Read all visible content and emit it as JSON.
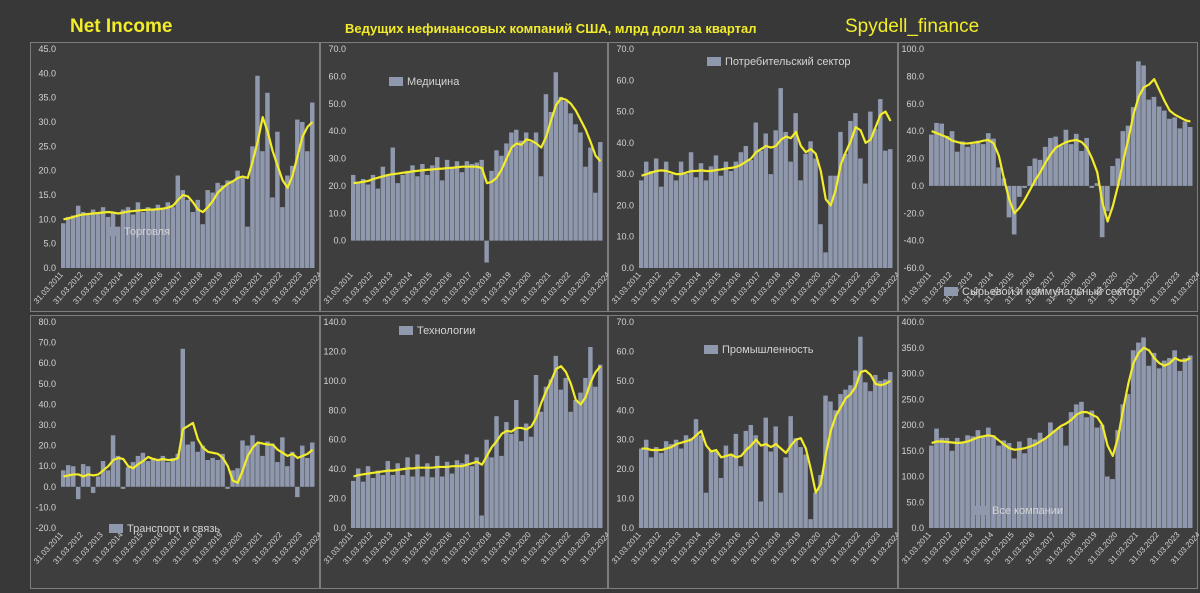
{
  "header": {
    "main_title": "Net Income",
    "subtitle": "Ведущих нефинансовых компаний США, млрд долл за квартал",
    "brand": "Spydell_finance"
  },
  "colors": {
    "bar": "#8f98ad",
    "line": "#f2ec2a",
    "text": "#d4d4d4",
    "panel": "#3e3e3e",
    "background": "#383838"
  },
  "x_labels": [
    "31.03.2011",
    "31.03.2012",
    "31.03.2013",
    "31.03.2014",
    "31.03.2015",
    "31.03.2016",
    "31.03.2017",
    "31.03.2018",
    "31.03.2019",
    "31.03.2020",
    "31.03.2021",
    "31.03.2022",
    "31.03.2023",
    "31.03.2024"
  ],
  "chart_data": [
    {
      "type": "bar",
      "title": "Торговля",
      "legend": "bottom-left",
      "ylim": [
        0,
        45
      ],
      "yticks": [
        "0.0",
        "5.0",
        "10.0",
        "15.0",
        "20.0",
        "25.0",
        "30.0",
        "35.0",
        "40.0",
        "45.0"
      ],
      "values": [
        9.2,
        10.5,
        10.8,
        12.8,
        11.5,
        10.9,
        12.0,
        11.5,
        12.5,
        10.5,
        11.5,
        8.5,
        12.0,
        12.5,
        11.0,
        13.5,
        11.5,
        12.5,
        12.2,
        13.0,
        12.0,
        13.5,
        12.5,
        19.0,
        16.0,
        14.0,
        11.5,
        14.0,
        9.0,
        16.0,
        15.5,
        17.5,
        17.0,
        18.0,
        18.0,
        20.0,
        18.5,
        8.5,
        25.0,
        39.5,
        24.0,
        36.0,
        14.5,
        28.0,
        12.5,
        19.0,
        21.0,
        30.5,
        30.0,
        24.0,
        34.0
      ],
      "trend": [
        10.0,
        10.2,
        10.5,
        10.8,
        11.0,
        11.1,
        11.2,
        11.3,
        11.4,
        11.5,
        11.4,
        11.2,
        11.4,
        11.6,
        11.7,
        11.8,
        11.9,
        12.0,
        12.0,
        12.1,
        12.2,
        12.4,
        12.8,
        14.0,
        15.0,
        14.7,
        13.5,
        12.0,
        11.5,
        12.5,
        13.8,
        15.5,
        16.5,
        17.3,
        17.8,
        18.5,
        18.8,
        18.5,
        22.0,
        26.0,
        31.0,
        28.0,
        24.0,
        21.0,
        18.0,
        16.5,
        19.0,
        23.0,
        27.0,
        29.0,
        30.0
      ]
    },
    {
      "type": "bar",
      "title": "Медицина",
      "legend": "top-left",
      "ylim": [
        -10,
        70
      ],
      "yticks": [
        "",
        "0.0",
        "10.0",
        "20.0",
        "30.0",
        "40.0",
        "50.0",
        "60.0",
        "70.0"
      ],
      "values": [
        24.0,
        21.0,
        22.5,
        20.5,
        24.0,
        19.0,
        27.0,
        24.0,
        34.0,
        21.0,
        24.0,
        25.5,
        27.5,
        23.5,
        28.0,
        24.0,
        27.5,
        30.5,
        22.0,
        29.5,
        27.0,
        29.0,
        25.0,
        29.0,
        28.0,
        28.5,
        29.5,
        -8.0,
        25.5,
        33.0,
        31.0,
        35.5,
        39.5,
        40.5,
        36.5,
        39.5,
        36.0,
        39.5,
        23.5,
        53.5,
        47.0,
        61.5,
        52.5,
        51.0,
        46.5,
        42.5,
        39.5,
        27.0,
        34.0,
        17.5,
        36.0
      ],
      "trend": [
        21.0,
        21.2,
        21.5,
        21.8,
        22.5,
        23.0,
        23.5,
        24.0,
        24.3,
        24.5,
        24.8,
        25.0,
        25.3,
        25.5,
        25.7,
        25.9,
        26.0,
        26.2,
        26.3,
        26.5,
        26.6,
        26.8,
        27.0,
        27.0,
        27.0,
        27.0,
        26.5,
        21.0,
        21.5,
        23.0,
        26.0,
        30.0,
        34.0,
        35.5,
        35.0,
        37.0,
        36.5,
        35.5,
        34.0,
        38.0,
        44.0,
        49.5,
        52.0,
        51.5,
        50.0,
        47.5,
        44.0,
        40.5,
        36.0,
        31.0,
        29.0
      ]
    },
    {
      "type": "bar",
      "title": "Потребительский сектор",
      "legend": "top",
      "ylim": [
        0,
        70
      ],
      "yticks": [
        "0.0",
        "10.0",
        "20.0",
        "30.0",
        "40.0",
        "50.0",
        "60.0",
        "70.0"
      ],
      "values": [
        28.0,
        34.0,
        31.0,
        35.0,
        26.0,
        34.0,
        30.0,
        28.0,
        34.0,
        30.0,
        37.0,
        29.0,
        33.5,
        28.0,
        32.5,
        36.0,
        29.5,
        34.0,
        31.0,
        34.0,
        37.0,
        39.0,
        34.5,
        46.5,
        37.5,
        43.0,
        30.0,
        44.0,
        57.5,
        43.5,
        34.0,
        49.5,
        28.0,
        36.5,
        40.5,
        35.0,
        14.0,
        5.0,
        29.5,
        29.5,
        43.5,
        36.5,
        47.0,
        49.5,
        35.0,
        27.0,
        50.0,
        44.5,
        54.0,
        37.5,
        38.0
      ],
      "trend": [
        29.5,
        30.0,
        30.5,
        31.0,
        31.2,
        31.0,
        30.5,
        30.0,
        30.0,
        30.5,
        31.0,
        31.0,
        31.2,
        31.0,
        31.0,
        31.3,
        31.5,
        31.8,
        32.0,
        32.3,
        33.0,
        34.0,
        35.0,
        37.0,
        38.0,
        39.0,
        38.5,
        39.0,
        41.0,
        42.0,
        41.5,
        43.5,
        39.0,
        37.0,
        38.0,
        36.5,
        31.0,
        22.0,
        20.0,
        25.0,
        33.0,
        37.0,
        40.5,
        45.0,
        44.0,
        40.0,
        41.0,
        45.0,
        49.0,
        50.0,
        47.0
      ]
    },
    {
      "type": "bar",
      "title": "Сырьевой и коммунальный сектор",
      "legend": "bottom",
      "ylim": [
        -60,
        100
      ],
      "yticks": [
        "-60.0",
        "-40.0",
        "-20.0",
        "0.0",
        "20.0",
        "40.0",
        "60.0",
        "80.0",
        "100.0"
      ],
      "values": [
        37.5,
        46.0,
        45.5,
        36.5,
        40.0,
        25.0,
        32.5,
        28.5,
        30.5,
        33.0,
        30.5,
        38.5,
        34.5,
        13.5,
        5.5,
        -23.0,
        -35.5,
        -8.0,
        -1.5,
        14.5,
        20.0,
        19.0,
        28.5,
        35.0,
        36.0,
        29.5,
        41.0,
        30.5,
        38.0,
        25.5,
        35.0,
        -1.5,
        2.0,
        -37.5,
        -18.5,
        14.5,
        20.0,
        40.0,
        44.0,
        57.5,
        91.0,
        88.0,
        63.0,
        65.0,
        58.0,
        55.0,
        49.0,
        50.0,
        42.0,
        47.0,
        43.0
      ],
      "trend": [
        40.0,
        38.5,
        37.0,
        35.5,
        33.0,
        32.0,
        31.0,
        31.0,
        31.5,
        32.0,
        33.0,
        33.5,
        31.0,
        22.0,
        5.0,
        -10.0,
        -20.0,
        -16.0,
        -10.0,
        -3.0,
        4.0,
        10.0,
        17.0,
        23.0,
        28.0,
        30.0,
        32.0,
        33.0,
        33.5,
        32.0,
        28.0,
        20.0,
        10.0,
        -12.0,
        -26.0,
        -15.0,
        0.0,
        18.0,
        34.0,
        52.0,
        65.0,
        72.0,
        74.0,
        78.0,
        70.0,
        62.0,
        55.0,
        52.0,
        50.0,
        48.0,
        47.0
      ]
    },
    {
      "type": "bar",
      "title": "Транспорт и связь",
      "legend": "bottom-left",
      "ylim": [
        -20,
        80
      ],
      "yticks": [
        "-20.0",
        "-10.0",
        "0.0",
        "10.0",
        "20.0",
        "30.0",
        "40.0",
        "50.0",
        "60.0",
        "70.0",
        "80.0"
      ],
      "values": [
        8.0,
        10.5,
        10.0,
        -6.0,
        11.0,
        10.0,
        -3.0,
        5.0,
        12.5,
        8.0,
        25.0,
        15.0,
        -1.0,
        9.5,
        12.0,
        15.0,
        16.5,
        12.5,
        14.0,
        13.0,
        15.0,
        12.0,
        14.0,
        16.0,
        67.0,
        20.5,
        22.0,
        17.0,
        20.0,
        13.0,
        14.0,
        13.0,
        16.0,
        -1.0,
        8.0,
        9.0,
        22.5,
        20.0,
        25.0,
        21.0,
        15.0,
        22.0,
        21.0,
        12.0,
        24.0,
        10.0,
        17.0,
        -5.0,
        20.0,
        14.0,
        21.5
      ],
      "trend": [
        5.0,
        5.5,
        6.0,
        6.0,
        5.0,
        6.0,
        5.5,
        6.0,
        8.0,
        10.0,
        13.0,
        14.0,
        13.5,
        10.0,
        9.0,
        11.0,
        12.5,
        14.5,
        13.5,
        13.0,
        13.5,
        13.0,
        13.0,
        14.0,
        28.0,
        29.5,
        31.0,
        23.0,
        19.0,
        17.0,
        16.5,
        16.0,
        14.0,
        10.0,
        3.0,
        2.0,
        8.0,
        15.0,
        19.0,
        21.5,
        21.0,
        20.5,
        20.5,
        18.0,
        16.5,
        15.0,
        16.0,
        14.0,
        15.0,
        16.0,
        18.0
      ]
    },
    {
      "type": "bar",
      "title": "Технологии",
      "legend": "top-left",
      "ylim": [
        0,
        140
      ],
      "yticks": [
        "0.0",
        "20.0",
        "40.0",
        "60.0",
        "80.0",
        "100.0",
        "120.0",
        "140.0"
      ],
      "values": [
        32.0,
        40.5,
        31.5,
        42.0,
        34.0,
        39.0,
        36.0,
        45.5,
        36.0,
        44.0,
        36.0,
        48.0,
        35.0,
        50.0,
        35.0,
        44.0,
        34.5,
        49.0,
        35.0,
        45.0,
        37.0,
        46.0,
        44.0,
        50.0,
        42.0,
        48.0,
        8.5,
        60.0,
        48.0,
        76.0,
        49.0,
        72.0,
        64.0,
        87.0,
        59.0,
        71.0,
        62.0,
        104.0,
        79.0,
        96.0,
        101.0,
        117.0,
        94.0,
        102.0,
        79.0,
        87.0,
        92.0,
        102.0,
        123.0,
        96.0,
        111.0
      ],
      "trend": [
        35.0,
        36.0,
        36.5,
        37.0,
        37.5,
        38.0,
        38.5,
        39.0,
        39.0,
        39.5,
        40.0,
        40.5,
        40.5,
        41.0,
        41.0,
        41.0,
        41.0,
        41.5,
        41.5,
        41.5,
        42.0,
        42.0,
        42.0,
        43.0,
        44.0,
        45.0,
        43.0,
        49.0,
        55.0,
        59.0,
        64.0,
        66.0,
        65.5,
        68.0,
        68.0,
        67.0,
        69.0,
        75.0,
        85.0,
        93.0,
        100.0,
        108.0,
        110.0,
        106.0,
        98.0,
        87.0,
        84.0,
        89.0,
        99.0,
        106.0,
        110.0
      ]
    },
    {
      "type": "bar",
      "title": "Промышленность",
      "legend": "top",
      "ylim": [
        0,
        70
      ],
      "yticks": [
        "0.0",
        "10.0",
        "20.0",
        "30.0",
        "40.0",
        "50.0",
        "60.0",
        "70.0"
      ],
      "values": [
        27.0,
        30.0,
        24.0,
        27.5,
        25.5,
        29.5,
        28.5,
        30.0,
        27.0,
        31.5,
        30.5,
        37.0,
        31.5,
        12.0,
        26.5,
        26.0,
        17.0,
        28.0,
        25.0,
        32.0,
        21.0,
        33.0,
        35.0,
        31.5,
        9.0,
        37.5,
        26.0,
        34.5,
        12.0,
        24.0,
        38.0,
        30.5,
        27.5,
        25.0,
        3.0,
        12.0,
        18.0,
        45.0,
        43.0,
        40.0,
        45.5,
        47.0,
        48.5,
        53.5,
        65.0,
        49.5,
        46.5,
        52.0,
        50.0,
        50.5,
        53.0
      ],
      "trend": [
        27.0,
        27.0,
        26.5,
        26.5,
        26.5,
        27.0,
        27.5,
        28.5,
        29.0,
        29.5,
        30.0,
        31.5,
        33.0,
        28.0,
        26.0,
        26.5,
        24.0,
        24.5,
        25.0,
        24.0,
        24.5,
        26.5,
        28.0,
        30.0,
        28.0,
        28.5,
        27.5,
        28.5,
        27.0,
        25.5,
        28.0,
        30.0,
        30.5,
        27.0,
        20.0,
        12.0,
        15.0,
        25.0,
        33.0,
        38.0,
        41.0,
        44.0,
        45.5,
        48.0,
        53.0,
        53.5,
        52.0,
        49.0,
        48.5,
        49.0,
        50.0
      ]
    },
    {
      "type": "bar",
      "title": "Все компании",
      "legend": "bottom-left",
      "ylim": [
        0,
        400
      ],
      "yticks": [
        "0.0",
        "50.0",
        "100.0",
        "150.0",
        "200.0",
        "250.0",
        "300.0",
        "350.0",
        "400.0"
      ],
      "values": [
        160.0,
        193.0,
        175.0,
        175.0,
        150.0,
        175.0,
        165.0,
        180.0,
        178.0,
        190.0,
        178.0,
        195.0,
        180.0,
        160.0,
        170.0,
        165.0,
        135.0,
        168.0,
        145.0,
        175.0,
        172.0,
        185.0,
        175.0,
        205.0,
        190.0,
        195.0,
        160.0,
        225.0,
        240.0,
        245.0,
        215.0,
        228.0,
        195.0,
        200.0,
        100.0,
        95.0,
        190.0,
        240.0,
        260.0,
        345.0,
        360.0,
        370.0,
        315.0,
        340.0,
        310.0,
        325.0,
        330.0,
        345.0,
        305.0,
        330.0,
        335.0
      ],
      "trend": [
        165.0,
        168.0,
        168.0,
        167.0,
        166.0,
        165.0,
        166.0,
        168.0,
        172.0,
        176.0,
        178.0,
        180.0,
        178.0,
        170.0,
        162.0,
        155.0,
        152.0,
        153.0,
        155.0,
        158.0,
        162.0,
        168.0,
        174.0,
        182.0,
        190.0,
        198.0,
        203.0,
        210.0,
        220.0,
        225.0,
        225.0,
        220.0,
        215.0,
        200.0,
        160.0,
        140.0,
        175.0,
        230.0,
        280.0,
        320.0,
        340.0,
        350.0,
        345.0,
        330.0,
        320.0,
        315.0,
        320.0,
        330.0,
        325.0,
        325.0,
        330.0
      ]
    }
  ]
}
